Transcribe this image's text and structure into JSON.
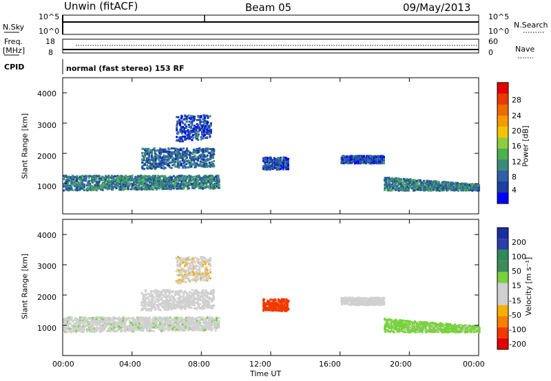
{
  "header": {
    "station": "Unwin (fitACF)",
    "beam": "Beam 05",
    "date": "09/May/2013"
  },
  "status_panel": {
    "nsky_label": "N.Sky",
    "nsky_ticks": [
      "10^5",
      "10^0"
    ],
    "nsearch_label": "N.Search",
    "nsearch_ticks": [
      "10^5",
      "10^0"
    ],
    "freq_label": "Freq.",
    "freq_unit": "[MHz]",
    "freq_ticks": [
      "18",
      "8"
    ],
    "nave_label": "Nave",
    "nave_ticks": [
      "60",
      "0"
    ],
    "cpid_label": "CPID",
    "cpid_text": "normal (fast stereo) 153 RF"
  },
  "colors": {
    "power_scale": [
      "#0000ff",
      "#1f3fa0",
      "#2e5fa8",
      "#3c8b7a",
      "#4caf50",
      "#8fcc3c",
      "#f5c400",
      "#f59a00",
      "#ef6a00",
      "#e83a00",
      "#e00000"
    ],
    "velocity_scale": [
      "#e00000",
      "#ef3a00",
      "#f57f00",
      "#f5b000",
      "#d0d0d0",
      "#d0d0d0",
      "#78d23c",
      "#3c8b5a",
      "#2e8b57",
      "#2b3fa8",
      "#1a2ea0"
    ]
  },
  "chart_data": [
    {
      "type": "heatmap",
      "name": "power",
      "ylabel": "Slant Range [km]",
      "ylim": [
        0,
        4500
      ],
      "yticks": [
        "4000",
        "3000",
        "2000",
        "1000"
      ],
      "colorbar_label": "Power [dB]",
      "colorbar_ticks": [
        "28",
        "24",
        "20",
        "16",
        "12",
        "8",
        "4"
      ],
      "colorbar_range": [
        0,
        30
      ],
      "x_range_hours": [
        0,
        24
      ],
      "echo_bands": [
        {
          "hours": [
            0.0,
            9.0
          ],
          "range_km": [
            800,
            1300
          ],
          "value": 8
        },
        {
          "hours": [
            4.5,
            8.7
          ],
          "range_km": [
            1500,
            2200
          ],
          "value": 6
        },
        {
          "hours": [
            6.5,
            8.5
          ],
          "range_km": [
            2400,
            3300
          ],
          "value": 4
        },
        {
          "hours": [
            18.5,
            24.0
          ],
          "range_km": [
            800,
            1300
          ],
          "value": 8
        },
        {
          "hours": [
            11.5,
            13.0
          ],
          "range_km": [
            1500,
            1900
          ],
          "value": 4
        },
        {
          "hours": [
            16.0,
            18.5
          ],
          "range_km": [
            1700,
            1950
          ],
          "value": 4
        }
      ]
    },
    {
      "type": "heatmap",
      "name": "velocity",
      "ylabel": "Slant Range [km]",
      "ylim": [
        0,
        4500
      ],
      "yticks": [
        "4000",
        "3000",
        "2000",
        "1000"
      ],
      "colorbar_label": "Velocity [m s⁻¹]",
      "colorbar_ticks": [
        "200",
        "100",
        "50",
        "15",
        "-15",
        "-50",
        "-100",
        "-200"
      ],
      "x_range_hours": [
        0,
        24
      ],
      "echo_bands": [
        {
          "hours": [
            0.0,
            9.0
          ],
          "range_km": [
            800,
            1300
          ],
          "value": 0
        },
        {
          "hours": [
            4.5,
            8.7
          ],
          "range_km": [
            1500,
            2200
          ],
          "value": -30
        },
        {
          "hours": [
            6.5,
            8.5
          ],
          "range_km": [
            2400,
            3300
          ],
          "value": -40
        },
        {
          "hours": [
            18.5,
            24.0
          ],
          "range_km": [
            800,
            1300
          ],
          "value": 30
        },
        {
          "hours": [
            11.5,
            13.0
          ],
          "range_km": [
            1500,
            1900
          ],
          "value": -150
        },
        {
          "hours": [
            16.0,
            18.5
          ],
          "range_km": [
            1700,
            1950
          ],
          "value": -10
        }
      ]
    }
  ],
  "x_axis": {
    "label": "Time UT",
    "ticks": [
      "00:00",
      "04:00",
      "08:00",
      "12:00",
      "16:00",
      "20:00",
      "00:00"
    ]
  }
}
